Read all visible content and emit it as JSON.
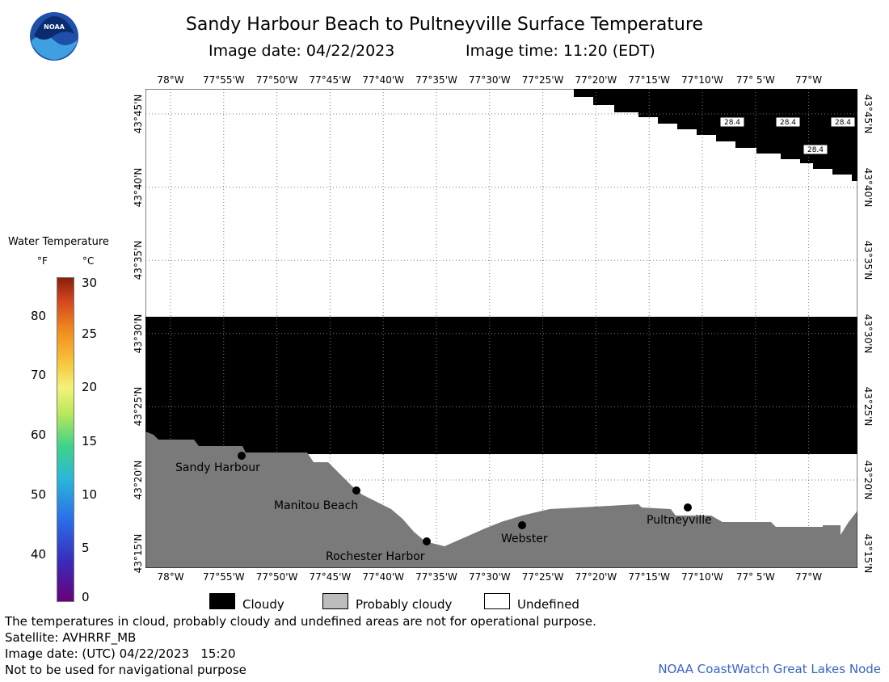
{
  "title": "Sandy Harbour Beach to Pultneyville Surface Temperature",
  "image_date_label": "Image date: 04/22/2023",
  "image_time_label": "Image time: 11:20 (EDT)",
  "longitude_labels": [
    "78°W",
    "77°55'W",
    "77°50'W",
    "77°45'W",
    "77°40'W",
    "77°35'W",
    "77°30'W",
    "77°25'W",
    "77°20'W",
    "77°15'W",
    "77°10'W",
    "77° 5'W",
    "77°W"
  ],
  "latitude_labels": [
    "43°45'N",
    "43°40'N",
    "43°35'N",
    "43°30'N",
    "43°25'N",
    "43°20'N",
    "43°15'N"
  ],
  "legend": {
    "title": "Water Temperature",
    "unit_f": "°F",
    "unit_c": "°C",
    "f_ticks": [
      "80",
      "70",
      "60",
      "50",
      "40"
    ],
    "c_ticks": [
      "30",
      "25",
      "20",
      "15",
      "10",
      "5",
      "0"
    ]
  },
  "places": [
    {
      "name": "Sandy Harbour"
    },
    {
      "name": "Manitou Beach"
    },
    {
      "name": "Rochester Harbor"
    },
    {
      "name": "Webster"
    },
    {
      "name": "Pultneyville"
    }
  ],
  "temperature_readings": [
    "28.4",
    "28.4",
    "28.4",
    "28.4"
  ],
  "categories": [
    {
      "label": "Cloudy",
      "color": "#000000"
    },
    {
      "label": "Probably cloudy",
      "color": "#bdbdbd"
    },
    {
      "label": "Undefined",
      "color": "#ffffff"
    }
  ],
  "footer": {
    "note": "The temperatures in cloud, probably cloudy and undefined areas are not for operational purpose.",
    "satellite": "Satellite: AVHRRF_MB",
    "utc_date": "Image date: (UTC) 04/22/2023   15:20",
    "nav_warning": "Not to be used for navigational purpose",
    "credit": "NOAA CoastWatch Great Lakes Node"
  },
  "colors": {
    "cloudy": "#000000",
    "land": "#7a7a7a",
    "undefined": "#ffffff",
    "credit": "#3a63c6"
  },
  "logo_text": "NOAA"
}
